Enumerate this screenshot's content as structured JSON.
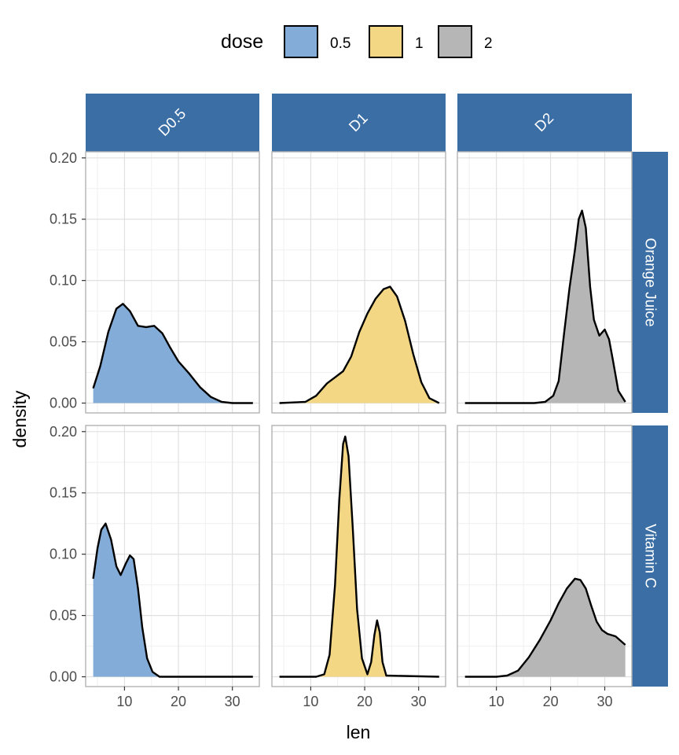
{
  "chart_data": {
    "type": "area",
    "xlabel": "len",
    "ylabel": "density",
    "xlim": [
      2.8,
      35.0
    ],
    "ylim": [
      -0.008,
      0.205
    ],
    "x_ticks": [
      10,
      20,
      30
    ],
    "x_tick_labels": [
      "10",
      "20",
      "30"
    ],
    "y_ticks": [
      0.0,
      0.05,
      0.1,
      0.15,
      0.2
    ],
    "y_tick_labels": [
      "0.00",
      "0.05",
      "0.10",
      "0.15",
      "0.20"
    ],
    "grid": true,
    "legend": {
      "title": "dose",
      "position": "top",
      "entries": [
        {
          "label": "0.5",
          "color": "#84ACD9"
        },
        {
          "label": "1",
          "color": "#F4D784"
        },
        {
          "label": "2",
          "color": "#B6B6B6"
        }
      ]
    },
    "strip_color": "#3A6EA5",
    "columns": [
      "D0.5",
      "D1",
      "D2"
    ],
    "rows": [
      "Orange Juice",
      "Vitamin C"
    ],
    "panels": [
      {
        "row": 0,
        "col": 0,
        "dose": "0.5",
        "fill": "#84ACD9",
        "points": [
          [
            4.2,
            0.012
          ],
          [
            5.5,
            0.03
          ],
          [
            7,
            0.058
          ],
          [
            8.5,
            0.077
          ],
          [
            9.7,
            0.081
          ],
          [
            11,
            0.075
          ],
          [
            12.5,
            0.063
          ],
          [
            14,
            0.062
          ],
          [
            15.5,
            0.063
          ],
          [
            17,
            0.057
          ],
          [
            18.5,
            0.045
          ],
          [
            20,
            0.034
          ],
          [
            22,
            0.024
          ],
          [
            24,
            0.013
          ],
          [
            26,
            0.005
          ],
          [
            28,
            0.001
          ],
          [
            30,
            0.0
          ],
          [
            33.8,
            0.0
          ]
        ]
      },
      {
        "row": 0,
        "col": 1,
        "dose": "1",
        "fill": "#F4D784",
        "points": [
          [
            4.2,
            0.0
          ],
          [
            9,
            0.001
          ],
          [
            11,
            0.006
          ],
          [
            13,
            0.016
          ],
          [
            14.5,
            0.021
          ],
          [
            16,
            0.026
          ],
          [
            17.5,
            0.038
          ],
          [
            19,
            0.058
          ],
          [
            20.5,
            0.073
          ],
          [
            22,
            0.085
          ],
          [
            23.5,
            0.093
          ],
          [
            24.7,
            0.095
          ],
          [
            26,
            0.087
          ],
          [
            27.5,
            0.067
          ],
          [
            29,
            0.04
          ],
          [
            30.5,
            0.017
          ],
          [
            32,
            0.004
          ],
          [
            33.8,
            0.0
          ]
        ]
      },
      {
        "row": 0,
        "col": 2,
        "dose": "2",
        "fill": "#B6B6B6",
        "points": [
          [
            4.2,
            0.0
          ],
          [
            14,
            0.0
          ],
          [
            17,
            0.0
          ],
          [
            19,
            0.001
          ],
          [
            20.5,
            0.006
          ],
          [
            21.5,
            0.018
          ],
          [
            22.5,
            0.057
          ],
          [
            23.5,
            0.094
          ],
          [
            24.5,
            0.125
          ],
          [
            25.2,
            0.15
          ],
          [
            25.8,
            0.157
          ],
          [
            26.5,
            0.143
          ],
          [
            27.3,
            0.095
          ],
          [
            28,
            0.068
          ],
          [
            29,
            0.055
          ],
          [
            30,
            0.06
          ],
          [
            30.8,
            0.052
          ],
          [
            31.5,
            0.035
          ],
          [
            32.5,
            0.01
          ],
          [
            33.8,
            0.001
          ]
        ]
      },
      {
        "row": 1,
        "col": 0,
        "dose": "0.5",
        "fill": "#84ACD9",
        "points": [
          [
            4.2,
            0.08
          ],
          [
            5,
            0.105
          ],
          [
            5.7,
            0.12
          ],
          [
            6.5,
            0.125
          ],
          [
            7.5,
            0.112
          ],
          [
            8.5,
            0.09
          ],
          [
            9.3,
            0.083
          ],
          [
            10.2,
            0.092
          ],
          [
            11,
            0.099
          ],
          [
            11.7,
            0.096
          ],
          [
            12.5,
            0.072
          ],
          [
            13.3,
            0.04
          ],
          [
            14.2,
            0.015
          ],
          [
            15.2,
            0.004
          ],
          [
            16.5,
            0.0
          ],
          [
            33.8,
            0.0
          ]
        ]
      },
      {
        "row": 1,
        "col": 1,
        "dose": "1",
        "fill": "#F4D784",
        "points": [
          [
            4.2,
            0.0
          ],
          [
            11,
            0.0
          ],
          [
            12.5,
            0.002
          ],
          [
            13.5,
            0.018
          ],
          [
            14.5,
            0.075
          ],
          [
            15.3,
            0.145
          ],
          [
            16,
            0.19
          ],
          [
            16.4,
            0.196
          ],
          [
            17,
            0.18
          ],
          [
            17.8,
            0.12
          ],
          [
            18.6,
            0.055
          ],
          [
            19.5,
            0.015
          ],
          [
            20.5,
            0.002
          ],
          [
            21.2,
            0.012
          ],
          [
            21.8,
            0.034
          ],
          [
            22.3,
            0.046
          ],
          [
            22.8,
            0.036
          ],
          [
            23.3,
            0.012
          ],
          [
            24,
            0.001
          ],
          [
            33.8,
            0.0
          ]
        ]
      },
      {
        "row": 1,
        "col": 2,
        "dose": "2",
        "fill": "#B6B6B6",
        "points": [
          [
            4.2,
            0.0
          ],
          [
            10,
            0.0
          ],
          [
            12,
            0.001
          ],
          [
            14,
            0.005
          ],
          [
            16,
            0.016
          ],
          [
            18,
            0.03
          ],
          [
            20,
            0.046
          ],
          [
            21.5,
            0.06
          ],
          [
            23,
            0.072
          ],
          [
            24.5,
            0.08
          ],
          [
            25.5,
            0.079
          ],
          [
            26.5,
            0.072
          ],
          [
            27.5,
            0.058
          ],
          [
            28.5,
            0.045
          ],
          [
            29.5,
            0.038
          ],
          [
            30.5,
            0.035
          ],
          [
            32,
            0.033
          ],
          [
            33.8,
            0.026
          ]
        ]
      }
    ]
  }
}
